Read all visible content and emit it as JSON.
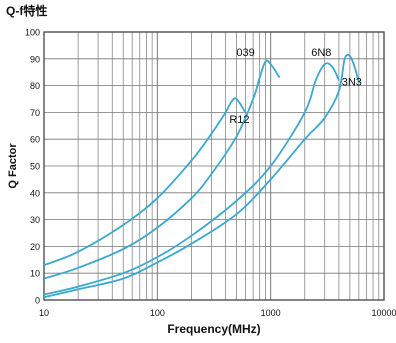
{
  "chart_data": {
    "type": "line",
    "title": "Q-f特性",
    "xlabel": "Frequency(MHz)",
    "ylabel": "Q Factor",
    "xscale": "log",
    "xlim": [
      10,
      10000
    ],
    "ylim": [
      0,
      100
    ],
    "x_ticks": [
      10,
      100,
      1000,
      10000
    ],
    "x_tick_labels": [
      "10",
      "100",
      "1000",
      "10000"
    ],
    "y_ticks": [
      0,
      10,
      20,
      30,
      40,
      50,
      60,
      70,
      80,
      90,
      100
    ],
    "y_tick_labels": [
      "0",
      "10",
      "20",
      "30",
      "40",
      "50",
      "60",
      "70",
      "80",
      "90",
      "100"
    ],
    "grid": true,
    "line_color": "#3aa8cf",
    "series": [
      {
        "name": "R12",
        "label_at": [
          530,
          66
        ],
        "x": [
          10,
          20,
          50,
          100,
          200,
          300,
          400,
          450,
          500,
          600
        ],
        "y": [
          13,
          18,
          28,
          38,
          52,
          62,
          70,
          74,
          75,
          70
        ]
      },
      {
        "name": "039",
        "label_at": [
          600,
          91
        ],
        "x": [
          10,
          20,
          50,
          100,
          200,
          300,
          500,
          700,
          800,
          900,
          1000,
          1200
        ],
        "y": [
          8,
          12,
          19,
          27,
          38,
          47,
          61,
          75,
          83,
          89,
          88,
          83
        ]
      },
      {
        "name": "6N8",
        "label_at": [
          2800,
          91
        ],
        "x": [
          10,
          20,
          50,
          100,
          200,
          500,
          1000,
          2000,
          2500,
          3000,
          3500,
          4000
        ],
        "y": [
          2,
          5,
          10,
          16,
          24,
          37,
          50,
          70,
          82,
          88,
          87,
          82
        ]
      },
      {
        "name": "3N3",
        "label_at": [
          5200,
          80
        ],
        "x": [
          10,
          20,
          50,
          100,
          200,
          500,
          1000,
          2000,
          3000,
          4000,
          4500,
          5000,
          5500,
          6000
        ],
        "y": [
          1,
          4,
          8,
          14,
          21,
          32,
          45,
          60,
          68,
          78,
          90,
          91,
          87,
          81
        ]
      }
    ]
  }
}
